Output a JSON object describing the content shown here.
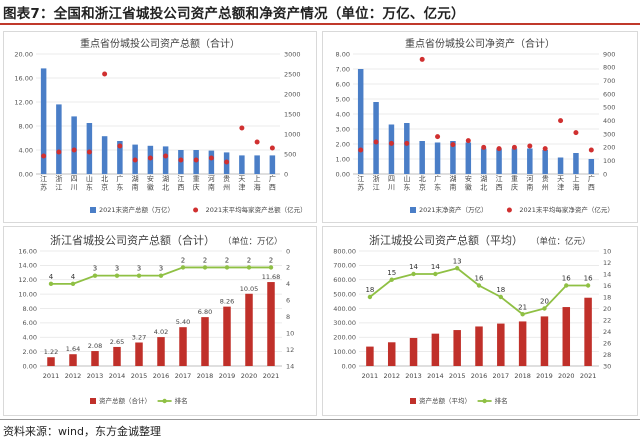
{
  "page": {
    "title": "图表7：全国和浙江省城投公司资产总额和净资产情况（单位：万亿、亿元）",
    "source": "资料来源：wind，东方金诚整理"
  },
  "colors": {
    "bar_blue": "#4a7ec7",
    "dot_red": "#d03030",
    "bar_red": "#c0302a",
    "line_green": "#8fc044",
    "title_rule": "#c0392b"
  },
  "chart_data": [
    {
      "id": "c1",
      "type": "bar",
      "title": "重点省份城投公司资产总额（合计）",
      "categories": [
        "江苏",
        "浙江",
        "四川",
        "山东",
        "北京",
        "广东",
        "湖南",
        "安徽",
        "湖北",
        "江西",
        "重庆",
        "河南",
        "贵州",
        "天津",
        "上海",
        "广西"
      ],
      "series": [
        {
          "name": "2021末资产总额（万亿）",
          "kind": "bar",
          "axis": "left",
          "values": [
            17.6,
            11.6,
            9.6,
            8.5,
            6.3,
            5.5,
            4.9,
            4.7,
            4.6,
            4.0,
            4.0,
            3.9,
            3.6,
            3.1,
            3.1,
            3.1
          ]
        },
        {
          "name": "2021末平均每家资产总额（亿元）",
          "kind": "dot",
          "axis": "right",
          "values": [
            450,
            550,
            600,
            550,
            2500,
            700,
            350,
            400,
            450,
            350,
            350,
            400,
            300,
            1150,
            800,
            650
          ]
        }
      ],
      "ylim": [
        0,
        20
      ],
      "yticks": [
        "0.00",
        "4.00",
        "8.00",
        "12.00",
        "16.00",
        "20.00"
      ],
      "y2lim": [
        0,
        3000
      ],
      "y2ticks": [
        "0",
        "500",
        "1000",
        "1500",
        "2000",
        "2500",
        "3000"
      ],
      "grid": true,
      "legend": "bottom"
    },
    {
      "id": "c2",
      "type": "bar",
      "title": "重点省份城投公司净资产（合计）",
      "categories": [
        "江苏",
        "浙江",
        "四川",
        "山东",
        "北京",
        "广东",
        "湖南",
        "安徽",
        "湖北",
        "江西",
        "重庆",
        "河南",
        "贵州",
        "天津",
        "上海",
        "广西"
      ],
      "series": [
        {
          "name": "2021末净资产（万亿）",
          "kind": "bar",
          "axis": "left",
          "values": [
            7.0,
            4.8,
            3.3,
            3.4,
            2.2,
            2.1,
            2.2,
            2.1,
            1.7,
            1.7,
            1.7,
            1.7,
            1.6,
            1.1,
            1.4,
            1.0
          ]
        },
        {
          "name": "2021末平均每家净资产（亿元）",
          "kind": "dot",
          "axis": "right",
          "values": [
            180,
            240,
            230,
            230,
            860,
            280,
            220,
            250,
            200,
            190,
            200,
            210,
            190,
            400,
            310,
            180
          ]
        }
      ],
      "ylim": [
        0,
        8
      ],
      "yticks": [
        "0.00",
        "1.00",
        "2.00",
        "3.00",
        "4.00",
        "5.00",
        "6.00",
        "7.00",
        "8.00"
      ],
      "y2lim": [
        0,
        900
      ],
      "y2ticks": [
        "0",
        "100",
        "200",
        "300",
        "400",
        "500",
        "600",
        "700",
        "800",
        "900"
      ],
      "grid": true,
      "legend": "bottom"
    },
    {
      "id": "c3",
      "type": "bar",
      "title": "浙江省城投公司资产总额（合计）",
      "unit": "（单位：万亿）",
      "categories": [
        "2011",
        "2012",
        "2013",
        "2014",
        "2015",
        "2016",
        "2017",
        "2018",
        "2019",
        "2020",
        "2021"
      ],
      "series": [
        {
          "name": "资产总额（合计）",
          "kind": "bar",
          "axis": "left",
          "values": [
            1.22,
            1.64,
            2.08,
            2.65,
            3.27,
            4.02,
            5.4,
            6.8,
            8.26,
            10.05,
            11.68
          ],
          "labels": [
            "1.22",
            "1.64",
            "2.08",
            "2.65",
            "3.27",
            "4.02",
            "5.40",
            "6.80",
            "8.26",
            "10.05",
            "11.68"
          ]
        },
        {
          "name": "排名",
          "kind": "line",
          "axis": "right",
          "values": [
            4,
            4,
            3,
            3,
            3,
            3,
            2,
            2,
            2,
            2,
            2
          ],
          "labels": [
            "4",
            "4",
            "3",
            "3",
            "3",
            "3",
            "2",
            "2",
            "2",
            "2",
            "2"
          ]
        }
      ],
      "ylim": [
        0,
        16
      ],
      "yticks": [
        "0.00",
        "2.00",
        "4.00",
        "6.00",
        "8.00",
        "10.00",
        "12.00",
        "14.00",
        "16.00"
      ],
      "y2lim": [
        0,
        14
      ],
      "y2_inverted": true,
      "y2ticks": [
        "0",
        "2",
        "4",
        "6",
        "8",
        "10",
        "12",
        "14"
      ],
      "grid": true,
      "legend": "bottom"
    },
    {
      "id": "c4",
      "type": "bar",
      "title": "浙江城投公司资产总额（平均）",
      "unit": "（单位：亿元）",
      "categories": [
        "2011",
        "2012",
        "2013",
        "2014",
        "2015",
        "2016",
        "2017",
        "2018",
        "2019",
        "2020",
        "2021"
      ],
      "series": [
        {
          "name": "资产总额（平均）",
          "kind": "bar",
          "axis": "left",
          "values": [
            135,
            165,
            195,
            225,
            250,
            275,
            295,
            310,
            345,
            410,
            475
          ]
        },
        {
          "name": "排名",
          "kind": "line",
          "axis": "right",
          "values": [
            18,
            15,
            14,
            14,
            13,
            16,
            18,
            21,
            20,
            16,
            16
          ],
          "labels": [
            "18",
            "15",
            "14",
            "14",
            "13",
            "16",
            "18",
            "21",
            "20",
            "16",
            "16"
          ]
        }
      ],
      "ylim": [
        0,
        800
      ],
      "yticks": [
        "0.00",
        "100.00",
        "200.00",
        "300.00",
        "400.00",
        "500.00",
        "600.00",
        "700.00",
        "800.00"
      ],
      "y2lim": [
        10,
        30
      ],
      "y2_inverted": true,
      "y2ticks": [
        "10",
        "12",
        "14",
        "16",
        "18",
        "20",
        "22",
        "24",
        "26",
        "28",
        "30"
      ],
      "grid": true,
      "legend": "bottom"
    }
  ]
}
